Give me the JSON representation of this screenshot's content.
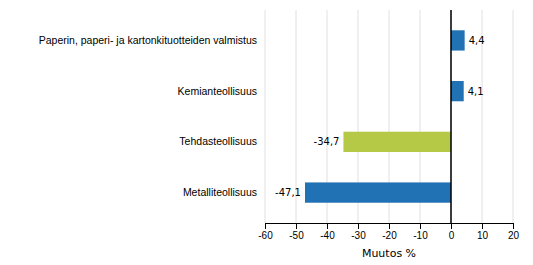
{
  "chart_data": {
    "type": "bar",
    "orientation": "horizontal",
    "categories": [
      "Metalliteollisuus",
      "Tehdasteollisuus",
      "Kemianteollisuus",
      "Paperin, paperi- ja kartonkituotteiden valmistus"
    ],
    "values": [
      -47.1,
      -34.7,
      4.1,
      4.4
    ],
    "value_labels": [
      "-47,1",
      "-34,7",
      "4,1",
      "4,4"
    ],
    "data_labels": true,
    "colors": [
      "#2171b5",
      "#b5c947",
      "#2171b5",
      "#2171b5"
    ],
    "xlabel": "Muutos %",
    "xlim": [
      -60,
      20
    ],
    "xticks": [
      -60,
      -50,
      -40,
      -30,
      -20,
      -10,
      0,
      10,
      20
    ],
    "grid": true
  }
}
